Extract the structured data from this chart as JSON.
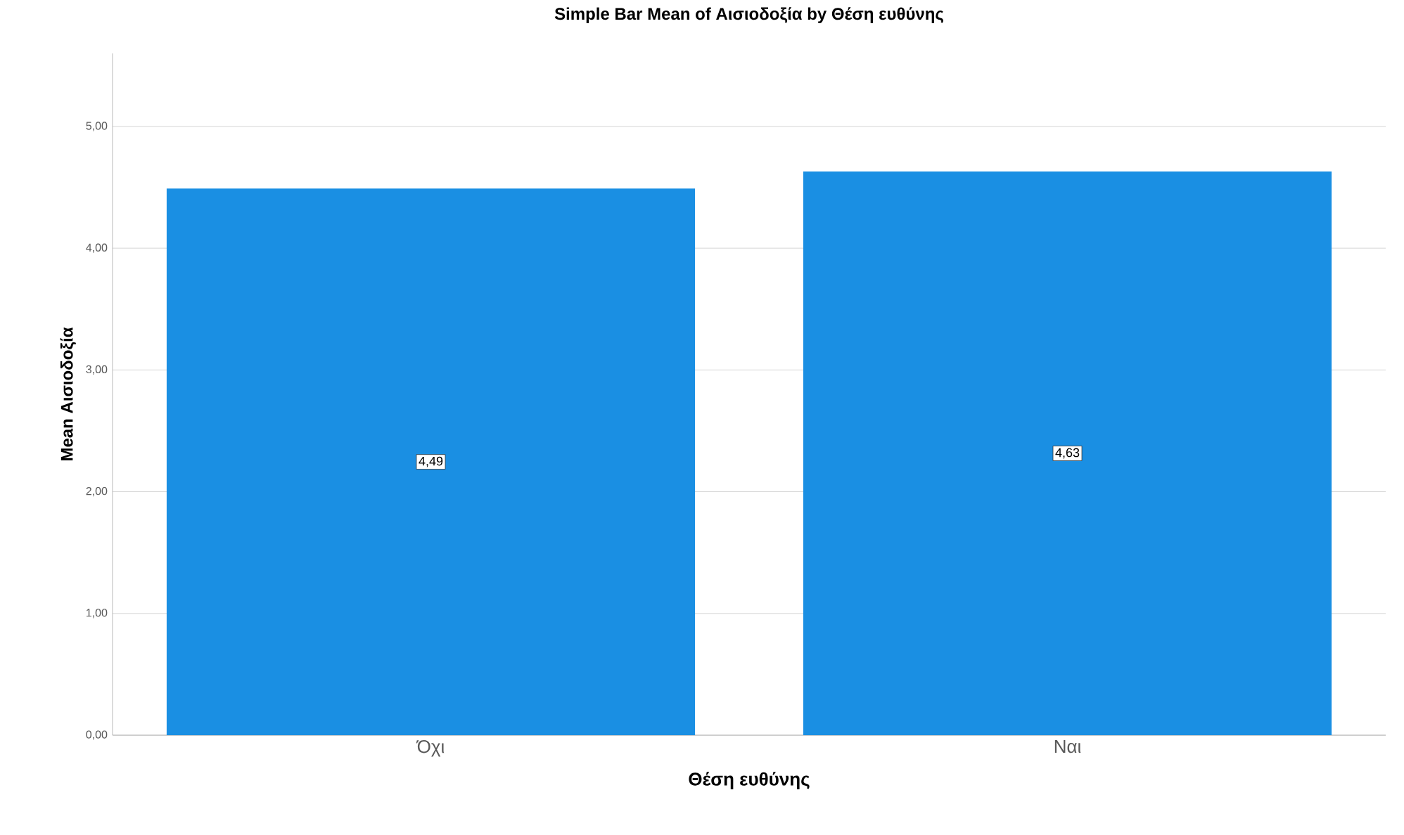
{
  "chart_data": {
    "type": "bar",
    "title": "Simple Bar Mean of Αισιοδοξία by Θέση ευθύνης",
    "xlabel": "Θέση ευθύνης",
    "ylabel": "Mean Αισιοδοξία",
    "categories": [
      "Όχι",
      "Ναι"
    ],
    "values": [
      4.49,
      4.63
    ],
    "value_labels": [
      "4,49",
      "4,63"
    ],
    "color": "#1a8fe3",
    "ylim": [
      0,
      5.6
    ],
    "yticks": [
      {
        "value": 0,
        "label": "0,00"
      },
      {
        "value": 1,
        "label": "1,00"
      },
      {
        "value": 2,
        "label": "2,00"
      },
      {
        "value": 3,
        "label": "3,00"
      },
      {
        "value": 4,
        "label": "4,00"
      },
      {
        "value": 5,
        "label": "5,00"
      }
    ],
    "grid": "y"
  }
}
